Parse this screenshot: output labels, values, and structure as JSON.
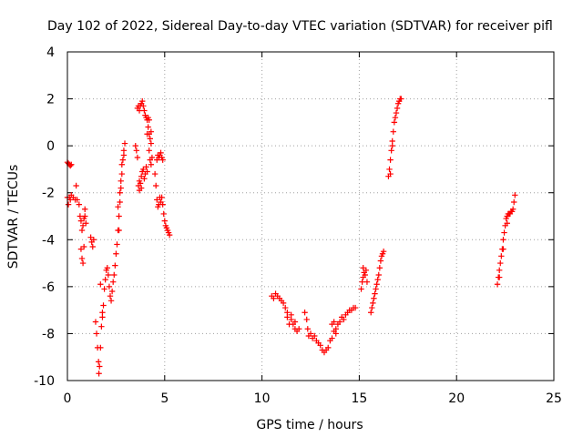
{
  "chart_data": {
    "type": "scatter",
    "title": "Day 102 of 2022, Sidereal Day-to-day VTEC variation (SDTVAR) for receiver pifl",
    "xlabel": "GPS time / hours",
    "ylabel": "SDTVAR / TECUs",
    "xlim": [
      0,
      25
    ],
    "ylim": [
      -10,
      4
    ],
    "xticks": [
      0,
      5,
      10,
      15,
      20,
      25
    ],
    "yticks": [
      -10,
      -8,
      -6,
      -4,
      -2,
      0,
      2,
      4
    ],
    "grid": true,
    "marker": "+",
    "color": "#ff0000",
    "series": [
      {
        "name": "SDTVAR",
        "segments": [
          [
            [
              0.0,
              -0.7
            ],
            [
              0.05,
              -0.75
            ],
            [
              0.1,
              -0.8
            ],
            [
              0.15,
              -0.85
            ],
            [
              0.2,
              -0.8
            ]
          ],
          [
            [
              0.0,
              -2.2
            ],
            [
              0.05,
              -2.5
            ],
            [
              0.1,
              -2.2
            ],
            [
              0.15,
              -2.3
            ],
            [
              0.2,
              -2.1
            ],
            [
              0.3,
              -2.2
            ],
            [
              0.4,
              -2.3
            ],
            [
              0.45,
              -1.7
            ]
          ],
          [
            [
              0.5,
              -2.3
            ],
            [
              0.6,
              -2.5
            ],
            [
              0.65,
              -3.0
            ],
            [
              0.7,
              -3.2
            ],
            [
              0.75,
              -3.6
            ],
            [
              0.8,
              -3.4
            ],
            [
              0.85,
              -3.1
            ],
            [
              0.9,
              -3.0
            ],
            [
              0.95,
              -3.3
            ],
            [
              0.7,
              -4.4
            ],
            [
              0.75,
              -4.8
            ],
            [
              0.8,
              -5.0
            ],
            [
              0.85,
              -4.3
            ],
            [
              0.9,
              -2.7
            ]
          ],
          [
            [
              1.2,
              -3.9
            ],
            [
              1.25,
              -4.1
            ],
            [
              1.3,
              -4.3
            ],
            [
              1.35,
              -4.0
            ]
          ],
          [
            [
              1.45,
              -7.5
            ],
            [
              1.5,
              -8.0
            ],
            [
              1.55,
              -8.6
            ],
            [
              1.6,
              -9.2
            ],
            [
              1.62,
              -9.7
            ],
            [
              1.65,
              -9.4
            ],
            [
              1.7,
              -8.6
            ],
            [
              1.75,
              -7.7
            ],
            [
              1.8,
              -7.3
            ],
            [
              1.85,
              -6.8
            ],
            [
              1.9,
              -6.1
            ],
            [
              1.95,
              -5.7
            ],
            [
              1.7,
              -5.9
            ],
            [
              1.8,
              -7.1
            ]
          ],
          [
            [
              2.0,
              -5.3
            ],
            [
              2.05,
              -5.2
            ],
            [
              2.1,
              -5.5
            ],
            [
              2.15,
              -6.0
            ],
            [
              2.2,
              -6.4
            ],
            [
              2.25,
              -6.6
            ],
            [
              2.3,
              -6.2
            ],
            [
              2.35,
              -5.8
            ],
            [
              2.4,
              -5.5
            ],
            [
              2.45,
              -5.1
            ],
            [
              2.5,
              -4.6
            ]
          ],
          [
            [
              2.55,
              -4.2
            ],
            [
              2.6,
              -3.6
            ],
            [
              2.65,
              -3.0
            ],
            [
              2.7,
              -2.4
            ],
            [
              2.75,
              -1.8
            ],
            [
              2.8,
              -1.2
            ],
            [
              2.85,
              -0.6
            ],
            [
              2.9,
              -0.2
            ],
            [
              2.95,
              0.1
            ],
            [
              2.6,
              -2.6
            ],
            [
              2.7,
              -2.0
            ],
            [
              2.8,
              -0.8
            ],
            [
              2.9,
              -0.4
            ],
            [
              2.65,
              -3.6
            ],
            [
              2.75,
              -1.5
            ]
          ],
          [
            [
              3.5,
              0.0
            ],
            [
              3.55,
              -0.2
            ],
            [
              3.6,
              -0.5
            ],
            [
              3.65,
              -1.7
            ],
            [
              3.7,
              -1.9
            ],
            [
              3.75,
              -1.6
            ],
            [
              3.8,
              -1.3
            ],
            [
              3.85,
              -1.1
            ],
            [
              3.9,
              -1.0
            ],
            [
              3.95,
              -1.4
            ],
            [
              4.0,
              -1.2
            ],
            [
              4.05,
              -0.9
            ],
            [
              4.1,
              -1.1
            ],
            [
              3.7,
              -1.5
            ],
            [
              3.8,
              -1.8
            ]
          ],
          [
            [
              3.6,
              1.6
            ],
            [
              3.65,
              1.7
            ],
            [
              3.7,
              1.5
            ],
            [
              3.75,
              1.7
            ],
            [
              3.8,
              1.8
            ],
            [
              3.85,
              1.9
            ],
            [
              3.9,
              1.7
            ],
            [
              3.95,
              1.5
            ],
            [
              4.0,
              1.3
            ],
            [
              4.05,
              1.2
            ],
            [
              4.1,
              1.1
            ],
            [
              4.15,
              1.2
            ],
            [
              4.2,
              1.1
            ]
          ],
          [
            [
              4.1,
              0.5
            ],
            [
              4.15,
              0.8
            ],
            [
              4.2,
              0.5
            ],
            [
              4.25,
              0.3
            ],
            [
              4.3,
              0.1
            ],
            [
              4.2,
              -0.2
            ],
            [
              4.25,
              -0.6
            ],
            [
              4.3,
              -0.8
            ],
            [
              4.35,
              -0.5
            ],
            [
              4.3,
              0.6
            ]
          ],
          [
            [
              4.5,
              -1.2
            ],
            [
              4.55,
              -1.7
            ],
            [
              4.6,
              -2.3
            ],
            [
              4.65,
              -2.6
            ],
            [
              4.7,
              -2.5
            ],
            [
              4.75,
              -2.2
            ],
            [
              4.8,
              -2.4
            ],
            [
              4.85,
              -2.2
            ],
            [
              4.9,
              -2.5
            ],
            [
              4.6,
              -0.6
            ],
            [
              4.65,
              -0.4
            ],
            [
              4.7,
              -0.5
            ],
            [
              4.75,
              -0.4
            ],
            [
              4.8,
              -0.3
            ],
            [
              4.85,
              -0.5
            ],
            [
              4.9,
              -0.6
            ]
          ],
          [
            [
              4.95,
              -2.9
            ],
            [
              5.0,
              -3.2
            ],
            [
              5.05,
              -3.4
            ],
            [
              5.1,
              -3.5
            ],
            [
              5.15,
              -3.6
            ],
            [
              5.2,
              -3.7
            ],
            [
              5.25,
              -3.8
            ]
          ],
          [
            [
              10.5,
              -6.4
            ],
            [
              10.6,
              -6.5
            ],
            [
              10.7,
              -6.3
            ],
            [
              10.8,
              -6.4
            ],
            [
              10.9,
              -6.5
            ],
            [
              11.0,
              -6.6
            ],
            [
              11.1,
              -6.7
            ],
            [
              11.2,
              -6.9
            ],
            [
              11.3,
              -7.3
            ],
            [
              11.4,
              -7.6
            ],
            [
              11.5,
              -7.4
            ],
            [
              11.6,
              -7.6
            ],
            [
              11.7,
              -7.8
            ],
            [
              11.8,
              -7.9
            ],
            [
              11.9,
              -7.8
            ],
            [
              11.3,
              -7.1
            ],
            [
              11.5,
              -7.2
            ],
            [
              11.7,
              -7.5
            ]
          ],
          [
            [
              12.2,
              -7.1
            ],
            [
              12.3,
              -7.4
            ],
            [
              12.35,
              -7.8
            ],
            [
              12.4,
              -8.1
            ],
            [
              12.5,
              -8.0
            ],
            [
              12.6,
              -8.2
            ],
            [
              12.7,
              -8.1
            ],
            [
              12.8,
              -8.3
            ],
            [
              12.9,
              -8.4
            ],
            [
              13.0,
              -8.5
            ],
            [
              13.1,
              -8.7
            ],
            [
              13.2,
              -8.8
            ],
            [
              13.3,
              -8.7
            ],
            [
              13.4,
              -8.6
            ]
          ],
          [
            [
              13.5,
              -8.3
            ],
            [
              13.6,
              -8.2
            ],
            [
              13.7,
              -7.9
            ],
            [
              13.8,
              -7.8
            ],
            [
              13.9,
              -7.6
            ],
            [
              14.0,
              -7.5
            ],
            [
              14.1,
              -7.3
            ],
            [
              14.2,
              -7.4
            ],
            [
              14.3,
              -7.2
            ],
            [
              14.4,
              -7.1
            ],
            [
              14.5,
              -7.0
            ],
            [
              14.6,
              -7.0
            ],
            [
              14.7,
              -6.9
            ],
            [
              14.8,
              -6.9
            ],
            [
              13.6,
              -7.6
            ],
            [
              13.7,
              -7.5
            ],
            [
              13.8,
              -8.0
            ]
          ],
          [
            [
              15.1,
              -6.1
            ],
            [
              15.15,
              -5.8
            ],
            [
              15.2,
              -5.6
            ],
            [
              15.25,
              -5.4
            ],
            [
              15.3,
              -5.5
            ],
            [
              15.35,
              -5.3
            ],
            [
              15.4,
              -5.8
            ],
            [
              15.2,
              -5.2
            ]
          ],
          [
            [
              15.6,
              -7.1
            ],
            [
              15.65,
              -6.9
            ],
            [
              15.7,
              -6.7
            ],
            [
              15.75,
              -6.5
            ],
            [
              15.8,
              -6.3
            ],
            [
              15.85,
              -6.1
            ],
            [
              15.9,
              -5.9
            ],
            [
              15.95,
              -5.7
            ],
            [
              16.0,
              -5.5
            ],
            [
              16.05,
              -5.2
            ],
            [
              16.1,
              -4.9
            ],
            [
              16.15,
              -4.7
            ],
            [
              16.2,
              -4.6
            ],
            [
              16.25,
              -4.5
            ]
          ],
          [
            [
              16.5,
              -1.3
            ],
            [
              16.55,
              -1.0
            ],
            [
              16.6,
              -0.6
            ],
            [
              16.65,
              -0.2
            ],
            [
              16.7,
              0.2
            ],
            [
              16.75,
              0.6
            ],
            [
              16.8,
              1.0
            ],
            [
              16.85,
              1.2
            ],
            [
              16.9,
              1.4
            ],
            [
              16.95,
              1.6
            ],
            [
              17.0,
              1.8
            ],
            [
              17.05,
              1.9
            ],
            [
              17.1,
              2.0
            ],
            [
              17.15,
              2.0
            ],
            [
              16.6,
              -1.2
            ],
            [
              16.7,
              0.0
            ]
          ],
          [
            [
              22.1,
              -5.9
            ],
            [
              22.15,
              -5.6
            ],
            [
              22.2,
              -5.3
            ],
            [
              22.25,
              -5.0
            ],
            [
              22.3,
              -4.7
            ],
            [
              22.35,
              -4.4
            ],
            [
              22.4,
              -4.0
            ],
            [
              22.45,
              -3.7
            ],
            [
              22.5,
              -3.4
            ],
            [
              22.55,
              -3.1
            ],
            [
              22.6,
              -3.0
            ],
            [
              22.65,
              -2.9
            ],
            [
              22.7,
              -2.9
            ],
            [
              22.75,
              -2.9
            ],
            [
              22.8,
              -2.8
            ],
            [
              22.85,
              -2.8
            ],
            [
              22.9,
              -2.7
            ],
            [
              22.95,
              -2.4
            ],
            [
              23.0,
              -2.1
            ],
            [
              22.2,
              -5.6
            ],
            [
              22.4,
              -4.4
            ],
            [
              22.6,
              -3.3
            ]
          ]
        ]
      }
    ]
  }
}
